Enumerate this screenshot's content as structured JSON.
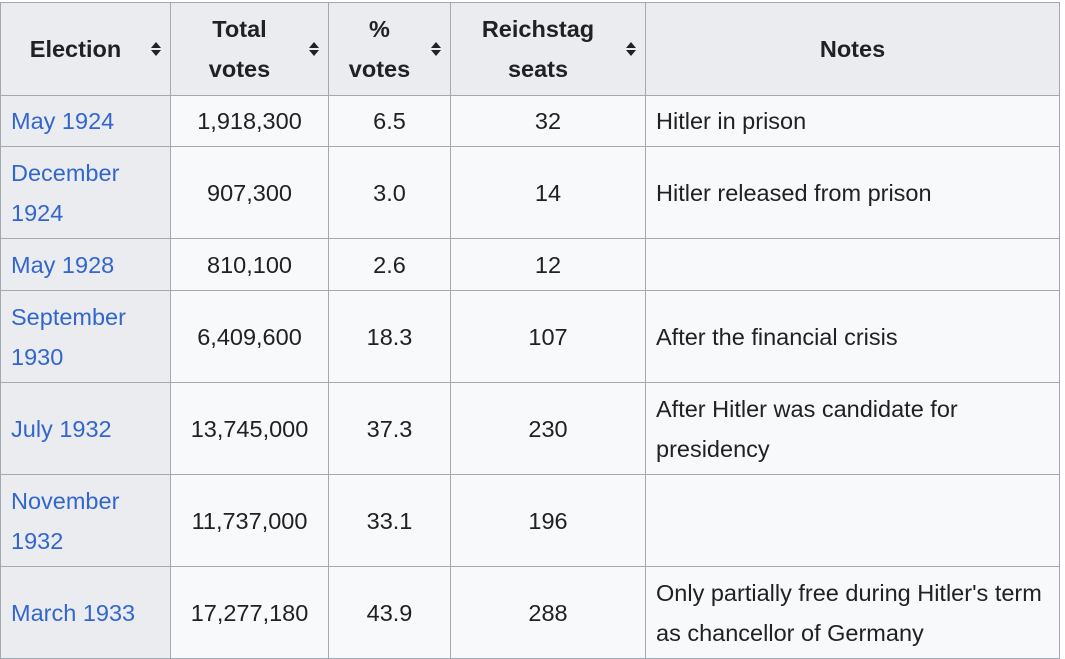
{
  "table": {
    "headers": {
      "election": "Election",
      "total_votes_line1": "Total",
      "total_votes_line2": "votes",
      "pct_votes_line1": "%",
      "pct_votes_line2": "votes",
      "seats_line1": "Reichstag",
      "seats_line2": "seats",
      "notes": "Notes"
    },
    "sort_icon": "sort-up-down-icon",
    "rows": [
      {
        "election": "May 1924",
        "total_votes": "1,918,300",
        "pct_votes": "6.5",
        "seats": "32",
        "notes": "Hitler in prison"
      },
      {
        "election": "December 1924",
        "total_votes": "907,300",
        "pct_votes": "3.0",
        "seats": "14",
        "notes": "Hitler released from prison"
      },
      {
        "election": "May 1928",
        "total_votes": "810,100",
        "pct_votes": "2.6",
        "seats": "12",
        "notes": ""
      },
      {
        "election": "September 1930",
        "total_votes": "6,409,600",
        "pct_votes": "18.3",
        "seats": "107",
        "notes": "After the financial crisis"
      },
      {
        "election": "July 1932",
        "total_votes": "13,745,000",
        "pct_votes": "37.3",
        "seats": "230",
        "notes": "After Hitler was candidate for presidency"
      },
      {
        "election": "November 1932",
        "total_votes": "11,737,000",
        "pct_votes": "33.1",
        "seats": "196",
        "notes": ""
      },
      {
        "election": "March 1933",
        "total_votes": "17,277,180",
        "pct_votes": "43.9",
        "seats": "288",
        "notes": "Only partially free during Hitler's term as chancellor of Germany"
      }
    ]
  },
  "colors": {
    "link": "#3366cc",
    "header_bg": "#eaecf0",
    "cell_bg": "#f8f9fa",
    "border": "#a2a9b1"
  }
}
